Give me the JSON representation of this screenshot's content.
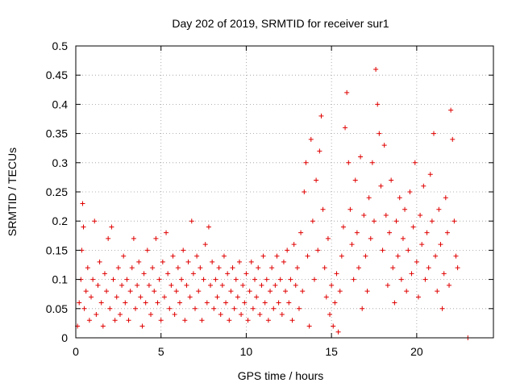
{
  "chart_data": {
    "type": "scatter",
    "title": "Day 202 of 2019, SRMTID for receiver sur1",
    "xlabel": "GPS time / hours",
    "ylabel": "SRMTID / TECUs",
    "xlim": [
      0,
      24.5
    ],
    "ylim": [
      0,
      0.5
    ],
    "x_ticks": [
      0,
      5,
      10,
      15,
      20
    ],
    "y_ticks": [
      0,
      0.05,
      0.1,
      0.15,
      0.2,
      0.25,
      0.3,
      0.35,
      0.4,
      0.45,
      0.5
    ],
    "x_tick_labels": [
      "0",
      "5",
      "10",
      "15",
      "20"
    ],
    "y_tick_labels": [
      "0",
      "0.05",
      "0.1",
      "0.15",
      "0.2",
      "0.25",
      "0.3",
      "0.35",
      "0.4",
      "0.45",
      "0.5"
    ],
    "grid": true,
    "marker": "+",
    "marker_color": "#e00000",
    "series": [
      {
        "name": "sur1",
        "points": [
          [
            0.1,
            0.02
          ],
          [
            0.2,
            0.06
          ],
          [
            0.3,
            0.1
          ],
          [
            0.35,
            0.15
          ],
          [
            0.4,
            0.23
          ],
          [
            0.45,
            0.19
          ],
          [
            0.5,
            0.05
          ],
          [
            0.6,
            0.08
          ],
          [
            0.7,
            0.12
          ],
          [
            0.8,
            0.03
          ],
          [
            0.9,
            0.07
          ],
          [
            1.0,
            0.1
          ],
          [
            1.1,
            0.2
          ],
          [
            1.2,
            0.04
          ],
          [
            1.3,
            0.09
          ],
          [
            1.4,
            0.13
          ],
          [
            1.5,
            0.06
          ],
          [
            1.6,
            0.02
          ],
          [
            1.7,
            0.11
          ],
          [
            1.8,
            0.08
          ],
          [
            1.9,
            0.17
          ],
          [
            2.0,
            0.05
          ],
          [
            2.1,
            0.19
          ],
          [
            2.2,
            0.1
          ],
          [
            2.3,
            0.03
          ],
          [
            2.4,
            0.07
          ],
          [
            2.5,
            0.12
          ],
          [
            2.6,
            0.04
          ],
          [
            2.7,
            0.09
          ],
          [
            2.8,
            0.14
          ],
          [
            2.9,
            0.06
          ],
          [
            3.0,
            0.1
          ],
          [
            3.1,
            0.03
          ],
          [
            3.2,
            0.08
          ],
          [
            3.3,
            0.12
          ],
          [
            3.4,
            0.17
          ],
          [
            3.5,
            0.05
          ],
          [
            3.6,
            0.09
          ],
          [
            3.7,
            0.13
          ],
          [
            3.8,
            0.07
          ],
          [
            3.9,
            0.02
          ],
          [
            4.0,
            0.11
          ],
          [
            4.1,
            0.06
          ],
          [
            4.2,
            0.15
          ],
          [
            4.3,
            0.09
          ],
          [
            4.4,
            0.04
          ],
          [
            4.5,
            0.12
          ],
          [
            4.6,
            0.08
          ],
          [
            4.7,
            0.17
          ],
          [
            4.8,
            0.06
          ],
          [
            4.9,
            0.1
          ],
          [
            5.0,
            0.03
          ],
          [
            5.1,
            0.13
          ],
          [
            5.2,
            0.07
          ],
          [
            5.3,
            0.18
          ],
          [
            5.4,
            0.11
          ],
          [
            5.5,
            0.05
          ],
          [
            5.6,
            0.09
          ],
          [
            5.7,
            0.14
          ],
          [
            5.8,
            0.04
          ],
          [
            5.9,
            0.08
          ],
          [
            6.0,
            0.12
          ],
          [
            6.1,
            0.06
          ],
          [
            6.2,
            0.1
          ],
          [
            6.3,
            0.15
          ],
          [
            6.4,
            0.03
          ],
          [
            6.5,
            0.09
          ],
          [
            6.6,
            0.13
          ],
          [
            6.7,
            0.07
          ],
          [
            6.8,
            0.2
          ],
          [
            6.9,
            0.11
          ],
          [
            7.0,
            0.05
          ],
          [
            7.1,
            0.14
          ],
          [
            7.2,
            0.08
          ],
          [
            7.3,
            0.12
          ],
          [
            7.4,
            0.03
          ],
          [
            7.5,
            0.1
          ],
          [
            7.6,
            0.16
          ],
          [
            7.7,
            0.06
          ],
          [
            7.8,
            0.19
          ],
          [
            7.9,
            0.09
          ],
          [
            8.0,
            0.13
          ],
          [
            8.1,
            0.05
          ],
          [
            8.2,
            0.1
          ],
          [
            8.3,
            0.07
          ],
          [
            8.4,
            0.12
          ],
          [
            8.5,
            0.04
          ],
          [
            8.6,
            0.09
          ],
          [
            8.7,
            0.14
          ],
          [
            8.8,
            0.06
          ],
          [
            8.9,
            0.11
          ],
          [
            9.0,
            0.03
          ],
          [
            9.1,
            0.08
          ],
          [
            9.2,
            0.12
          ],
          [
            9.3,
            0.05
          ],
          [
            9.4,
            0.1
          ],
          [
            9.5,
            0.07
          ],
          [
            9.6,
            0.13
          ],
          [
            9.7,
            0.04
          ],
          [
            9.8,
            0.09
          ],
          [
            9.9,
            0.06
          ],
          [
            10.0,
            0.11
          ],
          [
            10.1,
            0.03
          ],
          [
            10.2,
            0.08
          ],
          [
            10.3,
            0.13
          ],
          [
            10.4,
            0.05
          ],
          [
            10.5,
            0.1
          ],
          [
            10.6,
            0.07
          ],
          [
            10.7,
            0.12
          ],
          [
            10.8,
            0.04
          ],
          [
            10.9,
            0.09
          ],
          [
            11.0,
            0.14
          ],
          [
            11.1,
            0.06
          ],
          [
            11.2,
            0.1
          ],
          [
            11.3,
            0.03
          ],
          [
            11.4,
            0.08
          ],
          [
            11.5,
            0.12
          ],
          [
            11.6,
            0.05
          ],
          [
            11.7,
            0.09
          ],
          [
            11.8,
            0.14
          ],
          [
            11.9,
            0.06
          ],
          [
            12.0,
            0.1
          ],
          [
            12.1,
            0.04
          ],
          [
            12.2,
            0.13
          ],
          [
            12.3,
            0.08
          ],
          [
            12.4,
            0.15
          ],
          [
            12.5,
            0.06
          ],
          [
            12.6,
            0.1
          ],
          [
            12.7,
            0.03
          ],
          [
            12.8,
            0.16
          ],
          [
            12.9,
            0.09
          ],
          [
            13.0,
            0.12
          ],
          [
            13.1,
            0.05
          ],
          [
            13.2,
            0.18
          ],
          [
            13.3,
            0.08
          ],
          [
            13.4,
            0.25
          ],
          [
            13.5,
            0.3
          ],
          [
            13.6,
            0.14
          ],
          [
            13.7,
            0.02
          ],
          [
            13.8,
            0.34
          ],
          [
            13.9,
            0.2
          ],
          [
            14.0,
            0.1
          ],
          [
            14.1,
            0.27
          ],
          [
            14.2,
            0.15
          ],
          [
            14.3,
            0.32
          ],
          [
            14.4,
            0.38
          ],
          [
            14.5,
            0.22
          ],
          [
            14.6,
            0.12
          ],
          [
            14.7,
            0.07
          ],
          [
            14.8,
            0.17
          ],
          [
            14.9,
            0.04
          ],
          [
            15.0,
            0.09
          ],
          [
            15.1,
            0.02
          ],
          [
            15.2,
            0.06
          ],
          [
            15.3,
            0.11
          ],
          [
            15.4,
            0.01
          ],
          [
            15.5,
            0.08
          ],
          [
            15.6,
            0.14
          ],
          [
            15.7,
            0.19
          ],
          [
            15.8,
            0.36
          ],
          [
            15.9,
            0.42
          ],
          [
            16.0,
            0.3
          ],
          [
            16.1,
            0.22
          ],
          [
            16.2,
            0.16
          ],
          [
            16.3,
            0.1
          ],
          [
            16.4,
            0.27
          ],
          [
            16.5,
            0.18
          ],
          [
            16.6,
            0.12
          ],
          [
            16.7,
            0.31
          ],
          [
            16.8,
            0.05
          ],
          [
            16.9,
            0.21
          ],
          [
            17.0,
            0.14
          ],
          [
            17.1,
            0.08
          ],
          [
            17.2,
            0.24
          ],
          [
            17.3,
            0.17
          ],
          [
            17.4,
            0.3
          ],
          [
            17.5,
            0.2
          ],
          [
            17.6,
            0.46
          ],
          [
            17.7,
            0.4
          ],
          [
            17.8,
            0.35
          ],
          [
            17.9,
            0.26
          ],
          [
            18.0,
            0.15
          ],
          [
            18.1,
            0.33
          ],
          [
            18.2,
            0.21
          ],
          [
            18.3,
            0.09
          ],
          [
            18.4,
            0.18
          ],
          [
            18.5,
            0.27
          ],
          [
            18.6,
            0.12
          ],
          [
            18.7,
            0.06
          ],
          [
            18.8,
            0.2
          ],
          [
            18.9,
            0.14
          ],
          [
            19.0,
            0.24
          ],
          [
            19.1,
            0.1
          ],
          [
            19.2,
            0.17
          ],
          [
            19.3,
            0.22
          ],
          [
            19.4,
            0.08
          ],
          [
            19.5,
            0.15
          ],
          [
            19.6,
            0.25
          ],
          [
            19.7,
            0.11
          ],
          [
            19.8,
            0.19
          ],
          [
            19.9,
            0.3
          ],
          [
            20.0,
            0.13
          ],
          [
            20.1,
            0.07
          ],
          [
            20.2,
            0.21
          ],
          [
            20.3,
            0.16
          ],
          [
            20.4,
            0.26
          ],
          [
            20.5,
            0.1
          ],
          [
            20.6,
            0.18
          ],
          [
            20.7,
            0.12
          ],
          [
            20.8,
            0.28
          ],
          [
            20.9,
            0.2
          ],
          [
            21.0,
            0.35
          ],
          [
            21.1,
            0.14
          ],
          [
            21.2,
            0.08
          ],
          [
            21.3,
            0.22
          ],
          [
            21.4,
            0.16
          ],
          [
            21.5,
            0.05
          ],
          [
            21.6,
            0.11
          ],
          [
            21.7,
            0.24
          ],
          [
            21.8,
            0.18
          ],
          [
            21.9,
            0.09
          ],
          [
            22.0,
            0.39
          ],
          [
            22.1,
            0.34
          ],
          [
            22.2,
            0.2
          ],
          [
            22.3,
            0.14
          ],
          [
            22.4,
            0.12
          ],
          [
            23.0,
            0.0
          ]
        ]
      }
    ]
  }
}
